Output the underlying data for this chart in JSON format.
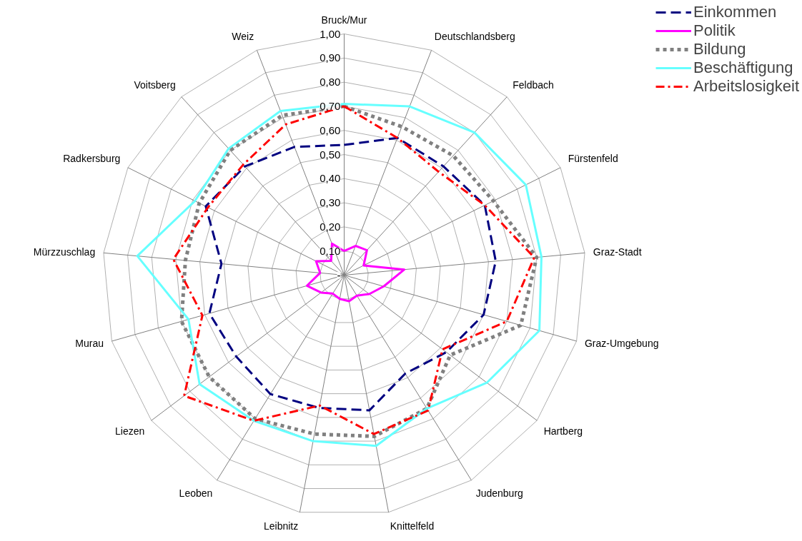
{
  "chart_data": {
    "type": "radar",
    "categories": [
      "Bruck/Mur",
      "Deutschlandsberg",
      "Feldbach",
      "Fürstenfeld",
      "Graz-Stadt",
      "Graz-Umgebung",
      "Hartberg",
      "Judenburg",
      "Knittelfeld",
      "Leibnitz",
      "Leoben",
      "Liezen",
      "Murau",
      "Mürzzuschlag",
      "Radkersburg",
      "Voitsberg",
      "Weiz"
    ],
    "ylim": [
      0,
      1
    ],
    "yticks": [
      {
        "value": 0,
        "label": "-"
      },
      {
        "value": 0.1,
        "label": "0,10"
      },
      {
        "value": 0.2,
        "label": "0,20"
      },
      {
        "value": 0.3,
        "label": "0,30"
      },
      {
        "value": 0.4,
        "label": "0,40"
      },
      {
        "value": 0.5,
        "label": "0,50"
      },
      {
        "value": 0.6,
        "label": "0,60"
      },
      {
        "value": 0.7,
        "label": "0,70"
      },
      {
        "value": 0.8,
        "label": "0,80"
      },
      {
        "value": 0.9,
        "label": "0,90"
      },
      {
        "value": 1.0,
        "label": "1,00"
      }
    ],
    "grid": true,
    "legend": "top right",
    "series": [
      {
        "name": "Einkommen",
        "color": "#000080",
        "line_style": "dashed",
        "values": [
          0.54,
          0.61,
          0.61,
          0.65,
          0.63,
          0.6,
          0.53,
          0.48,
          0.57,
          0.56,
          0.58,
          0.56,
          0.58,
          0.51,
          0.64,
          0.61,
          0.57
        ]
      },
      {
        "name": "Politik",
        "color": "#ff00ff",
        "line_style": "solid",
        "values": [
          0.1,
          0.13,
          0.14,
          0.09,
          0.25,
          0.17,
          0.13,
          0.1,
          0.11,
          0.1,
          0.09,
          0.12,
          0.16,
          0.1,
          0.13,
          0.08,
          0.14
        ]
      },
      {
        "name": "Bildung",
        "color": "#808080",
        "line_style": "dotted",
        "values": [
          0.7,
          0.66,
          0.67,
          0.69,
          0.8,
          0.76,
          0.55,
          0.65,
          0.68,
          0.67,
          0.7,
          0.7,
          0.7,
          0.66,
          0.67,
          0.7,
          0.71
        ]
      },
      {
        "name": "Beschäftigung",
        "color": "#66ffff",
        "line_style": "solid",
        "values": [
          0.71,
          0.75,
          0.8,
          0.84,
          0.82,
          0.84,
          0.74,
          0.65,
          0.72,
          0.7,
          0.71,
          0.75,
          0.67,
          0.86,
          0.69,
          0.71,
          0.73
        ]
      },
      {
        "name": "Arbeitslosigkeit",
        "color": "#ff0000",
        "line_style": "dashdot",
        "values": [
          0.7,
          0.61,
          0.58,
          0.65,
          0.79,
          0.7,
          0.51,
          0.66,
          0.67,
          0.55,
          0.71,
          0.83,
          0.61,
          0.71,
          0.63,
          0.62,
          0.67
        ]
      }
    ]
  }
}
